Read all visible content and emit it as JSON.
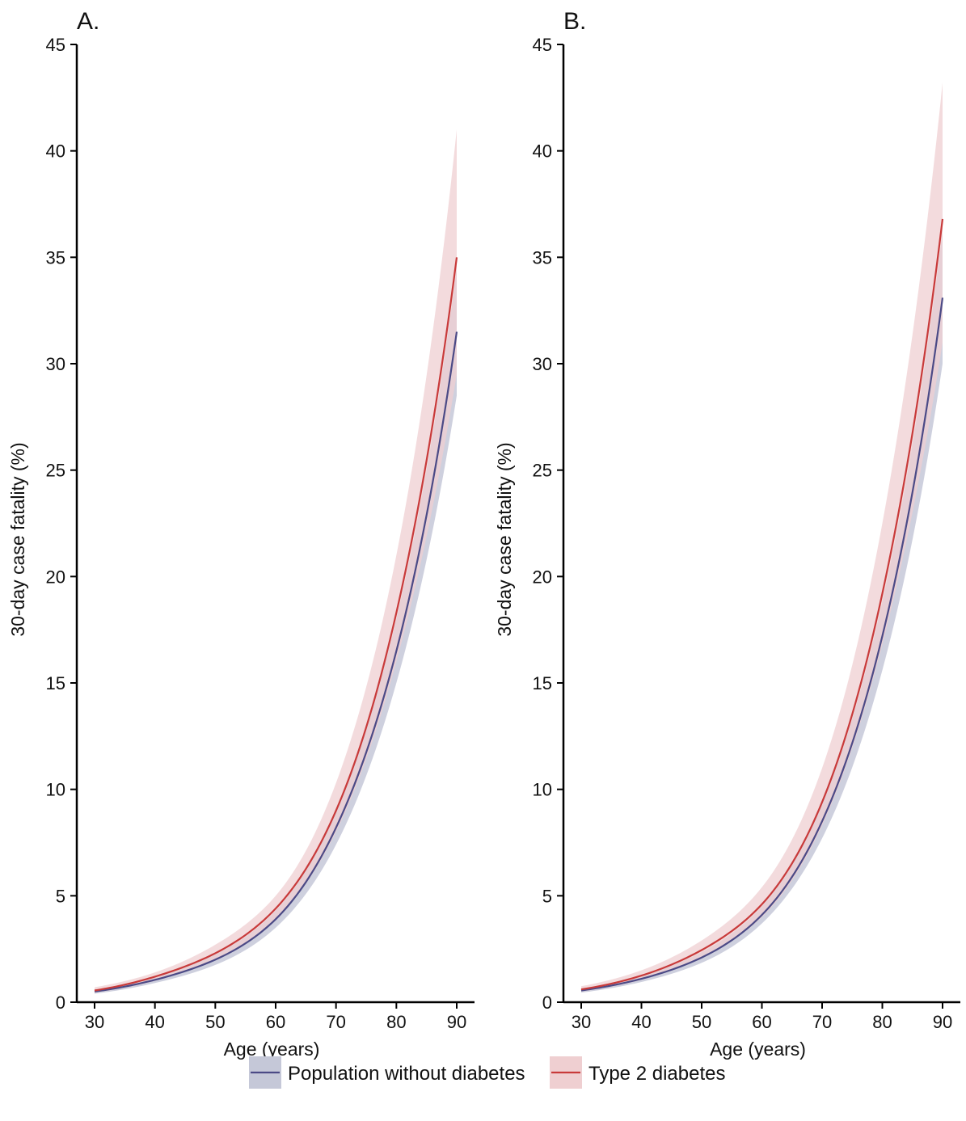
{
  "chart_data": [
    {
      "type": "line",
      "panel_label": "A.",
      "xlabel": "Age (years)",
      "ylabel": "30-day case fatality (%)",
      "xlim": [
        30,
        90
      ],
      "ylim": [
        0,
        45
      ],
      "x_ticks": [
        30,
        40,
        50,
        60,
        70,
        80,
        90
      ],
      "y_ticks": [
        0,
        5,
        10,
        15,
        20,
        25,
        30,
        35,
        40,
        45
      ],
      "grid": false,
      "x": [
        30,
        40,
        50,
        60,
        70,
        80,
        90
      ],
      "series": [
        {
          "name": "Population without diabetes",
          "color": "#4b4a86",
          "band_color": "#c5c8d8",
          "values": [
            0.5,
            1.05,
            2.0,
            3.9,
            8.2,
            16.5,
            31.5
          ],
          "lower": [
            0.4,
            0.9,
            1.75,
            3.5,
            7.4,
            15.0,
            28.5
          ],
          "upper": [
            0.6,
            1.2,
            2.25,
            4.3,
            9.0,
            18.0,
            34.5
          ]
        },
        {
          "name": "Type 2 diabetes",
          "color": "#c83a3a",
          "band_color": "#efcfd1",
          "values": [
            0.55,
            1.2,
            2.3,
            4.4,
            9.0,
            18.3,
            35.0
          ],
          "lower": [
            0.45,
            1.0,
            2.0,
            3.9,
            8.0,
            16.0,
            29.5
          ],
          "upper": [
            0.7,
            1.4,
            2.7,
            5.0,
            10.3,
            21.0,
            41.0
          ]
        }
      ]
    },
    {
      "type": "line",
      "panel_label": "B.",
      "xlabel": "Age (years)",
      "ylabel": "30-day case fatality (%)",
      "xlim": [
        30,
        90
      ],
      "ylim": [
        0,
        45
      ],
      "x_ticks": [
        30,
        40,
        50,
        60,
        70,
        80,
        90
      ],
      "y_ticks": [
        0,
        5,
        10,
        15,
        20,
        25,
        30,
        35,
        40,
        45
      ],
      "grid": false,
      "x": [
        30,
        40,
        50,
        60,
        70,
        80,
        90
      ],
      "series": [
        {
          "name": "Population without diabetes",
          "color": "#4b4a86",
          "band_color": "#c5c8d8",
          "values": [
            0.55,
            1.1,
            2.1,
            4.1,
            8.5,
            17.2,
            33.1
          ],
          "lower": [
            0.45,
            0.95,
            1.85,
            3.7,
            7.7,
            15.6,
            30.0
          ],
          "upper": [
            0.65,
            1.25,
            2.35,
            4.5,
            9.3,
            18.8,
            36.2
          ]
        },
        {
          "name": "Type 2 diabetes",
          "color": "#c83a3a",
          "band_color": "#efcfd1",
          "values": [
            0.6,
            1.25,
            2.45,
            4.6,
            9.4,
            19.2,
            36.8
          ],
          "lower": [
            0.5,
            1.05,
            2.1,
            4.0,
            8.3,
            16.8,
            31.0
          ],
          "upper": [
            0.75,
            1.5,
            2.9,
            5.4,
            11.0,
            22.5,
            43.2
          ]
        }
      ]
    }
  ],
  "legend": {
    "position": "bottom",
    "items": [
      {
        "label": "Population without diabetes",
        "color": "#4b4a86",
        "band_color": "#c5c8d8"
      },
      {
        "label": "Type 2 diabetes",
        "color": "#c83a3a",
        "band_color": "#efcfd1"
      }
    ]
  }
}
